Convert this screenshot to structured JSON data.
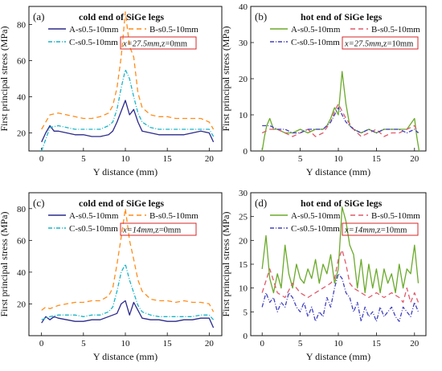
{
  "chart_data": [
    {
      "type": "line",
      "panel_label": "(a)",
      "title": "cold end of SiGe legs",
      "xlabel": "Y distance (mm)",
      "ylabel": "First principal stress (MPa)",
      "xlim": [
        -1.5,
        21.5
      ],
      "ylim": [
        10,
        90
      ],
      "xticks": [
        0,
        5,
        10,
        15,
        20
      ],
      "yticks": [
        20,
        40,
        60,
        80
      ],
      "legend_position": "top",
      "annotation": {
        "x_text": "x=27.5mm",
        "z_text": ",z=0mm"
      },
      "series": [
        {
          "name": "A-s0.5-10mm",
          "color": "#2b2a8c",
          "dash": "",
          "x": [
            0,
            0.5,
            1,
            1.5,
            2,
            3,
            4,
            5,
            6,
            7,
            8,
            8.5,
            9,
            9.5,
            10,
            10.5,
            11,
            11.5,
            12,
            13,
            14,
            15,
            16,
            17,
            18,
            19,
            20,
            20.5
          ],
          "y": [
            15,
            20,
            24,
            21,
            21,
            20,
            19,
            19,
            18,
            18,
            19,
            21,
            26,
            32,
            38,
            30,
            33,
            26,
            21,
            20,
            19,
            19,
            19,
            19,
            20,
            21,
            20,
            15
          ]
        },
        {
          "name": "B-s0.5-10mm",
          "color": "#ff8c1a",
          "dash": "6,4",
          "x": [
            0,
            1,
            2,
            3,
            4,
            5,
            6,
            7,
            8,
            8.5,
            9,
            9.5,
            10,
            10.5,
            11,
            11.5,
            12,
            13,
            14,
            15,
            16,
            17,
            18,
            19,
            20,
            20.5
          ],
          "y": [
            22,
            30,
            31,
            30,
            29,
            28,
            28,
            29,
            31,
            35,
            45,
            62,
            87,
            68,
            62,
            42,
            34,
            30,
            29,
            29,
            28,
            28,
            28,
            28,
            26,
            22
          ]
        },
        {
          "name": "C-s0.5-10mm",
          "color": "#19b4c8",
          "dash": "5,2,1,2",
          "x": [
            0,
            1,
            2,
            3,
            4,
            5,
            6,
            7,
            8,
            8.5,
            9,
            9.5,
            10,
            10.5,
            11,
            11.5,
            12,
            13,
            14,
            15,
            16,
            17,
            18,
            19,
            20,
            20.5
          ],
          "y": [
            10,
            23,
            24,
            23,
            22,
            22,
            22,
            22,
            24,
            26,
            33,
            45,
            55,
            50,
            40,
            31,
            26,
            23,
            22,
            22,
            22,
            22,
            22,
            22,
            22,
            18
          ]
        }
      ]
    },
    {
      "type": "line",
      "panel_label": "(b)",
      "title": "hot end of SiGe legs",
      "xlabel": "Y distance (mm)",
      "ylabel": "First principal stress (MPa)",
      "xlim": [
        -1.5,
        21.5
      ],
      "ylim": [
        0,
        40
      ],
      "xticks": [
        0,
        5,
        10,
        15,
        20
      ],
      "yticks": [
        0,
        10,
        20,
        30,
        40
      ],
      "legend_position": "top",
      "annotation": {
        "x_text": "x=27.5mm",
        "z_text": ",z=10mm"
      },
      "series": [
        {
          "name": "A-s0.5-10mm",
          "color": "#6aaa2a",
          "dash": "",
          "x": [
            0,
            0.3,
            0.6,
            1,
            1.5,
            2,
            3,
            4,
            5,
            6,
            7,
            8,
            8.5,
            9,
            9.5,
            10,
            10.5,
            11,
            11.5,
            12,
            13,
            14,
            15,
            16,
            17,
            18,
            19,
            20,
            20.3,
            20.6
          ],
          "y": [
            0,
            4,
            7,
            9,
            6,
            6,
            5,
            5,
            6,
            5,
            6,
            6,
            7,
            9,
            12,
            10,
            22,
            13,
            7,
            6,
            5,
            6,
            5,
            6,
            6,
            6,
            6,
            9,
            4,
            0
          ]
        },
        {
          "name": "B-s0.5-10mm",
          "color": "#e05a6a",
          "dash": "6,4",
          "x": [
            0,
            1,
            2,
            3,
            4,
            5,
            6,
            7,
            8,
            9,
            9.5,
            10,
            10.5,
            11,
            12,
            13,
            14,
            15,
            16,
            17,
            18,
            19,
            20,
            20.5
          ],
          "y": [
            5,
            6,
            6,
            5,
            4,
            5,
            6,
            4,
            5,
            8,
            11,
            13,
            11,
            9,
            6,
            4,
            5,
            6,
            4,
            5,
            5,
            6,
            7,
            5
          ]
        },
        {
          "name": "C-s0.5-10mm",
          "color": "#4040c0",
          "dash": "5,2,1,2",
          "x": [
            0,
            1,
            2,
            3,
            4,
            5,
            6,
            7,
            8,
            9,
            9.5,
            10,
            10.5,
            11,
            12,
            13,
            14,
            15,
            16,
            17,
            18,
            19,
            20,
            20.5
          ],
          "y": [
            7,
            7,
            6,
            6,
            5,
            5,
            6,
            6,
            6,
            8,
            10,
            12,
            10,
            8,
            6,
            5,
            6,
            5,
            6,
            6,
            6,
            5,
            6,
            5
          ]
        }
      ]
    },
    {
      "type": "line",
      "panel_label": "(c)",
      "title": "cold end of SiGe legs",
      "xlabel": "Y distance (mm)",
      "ylabel": "First principal stress (MPa)",
      "xlim": [
        -1.5,
        21.5
      ],
      "ylim": [
        0,
        90
      ],
      "xticks": [
        0,
        5,
        10,
        15,
        20
      ],
      "yticks": [
        20,
        40,
        60,
        80
      ],
      "legend_position": "top",
      "annotation": {
        "x_text": "x=14mm",
        "z_text": ",z=0mm"
      },
      "series": [
        {
          "name": "A-s0.5-10mm",
          "color": "#2b2a8c",
          "dash": "",
          "x": [
            0,
            0.5,
            1,
            1.5,
            2,
            3,
            4,
            5,
            6,
            7,
            8,
            9,
            9.5,
            10,
            10.5,
            11,
            11.5,
            12,
            13,
            14,
            15,
            16,
            17,
            18,
            19,
            20,
            20.5
          ],
          "y": [
            8,
            12,
            10,
            12,
            11,
            10,
            9,
            9,
            10,
            10,
            12,
            14,
            20,
            22,
            13,
            21,
            16,
            11,
            10,
            10,
            9,
            9,
            10,
            10,
            11,
            11,
            5
          ]
        },
        {
          "name": "B-s0.5-10mm",
          "color": "#ff8c1a",
          "dash": "6,4",
          "x": [
            0,
            0.5,
            1,
            2,
            3,
            4,
            5,
            6,
            7,
            8,
            8.5,
            9,
            9.5,
            10,
            10.5,
            11,
            11.5,
            12,
            13,
            14,
            15,
            16,
            17,
            18,
            19,
            20,
            20.5
          ],
          "y": [
            16,
            18,
            17,
            19,
            20,
            21,
            21,
            22,
            22,
            25,
            30,
            45,
            62,
            80,
            60,
            48,
            35,
            28,
            23,
            22,
            22,
            21,
            22,
            21,
            21,
            20,
            15
          ]
        },
        {
          "name": "C-s0.5-10mm",
          "color": "#19b4c8",
          "dash": "5,2,1,2",
          "x": [
            0,
            1,
            2,
            3,
            4,
            5,
            6,
            7,
            8,
            8.5,
            9,
            9.5,
            10,
            10.5,
            11,
            11.5,
            12,
            13,
            14,
            15,
            16,
            17,
            18,
            19,
            20,
            20.5
          ],
          "y": [
            10,
            12,
            13,
            13,
            13,
            12,
            13,
            13,
            15,
            18,
            28,
            40,
            45,
            35,
            27,
            19,
            15,
            13,
            12,
            12,
            12,
            12,
            12,
            13,
            13,
            10
          ]
        }
      ]
    },
    {
      "type": "line",
      "panel_label": "(d)",
      "title": "hot end of SiGe legs",
      "xlabel": "Y distance (mm)",
      "ylabel": "First principal stress (MPa)",
      "xlim": [
        -1.5,
        21.5
      ],
      "ylim": [
        0,
        30
      ],
      "xticks": [
        0,
        5,
        10,
        15,
        20
      ],
      "yticks": [
        0,
        5,
        10,
        15,
        20,
        25,
        30
      ],
      "legend_position": "top",
      "annotation": {
        "x_text": "x=14mm",
        "z_text": ",z=10mm"
      },
      "series": [
        {
          "name": "A-s0.5-10mm",
          "color": "#6aaa2a",
          "dash": "",
          "x": [
            0,
            0.5,
            1,
            1.5,
            2,
            2.5,
            3,
            3.5,
            4,
            4.5,
            5,
            5.5,
            6,
            6.5,
            7,
            7.5,
            8,
            8.5,
            9,
            9.5,
            10,
            10.5,
            11,
            11.5,
            12,
            12.5,
            13,
            13.5,
            14,
            14.5,
            15,
            15.5,
            16,
            16.5,
            17,
            17.5,
            18,
            18.5,
            19,
            19.5,
            20,
            20.5
          ],
          "y": [
            14,
            21,
            12,
            9,
            13,
            10,
            19,
            13,
            10,
            15,
            12,
            11,
            14,
            12,
            16,
            11,
            15,
            13,
            17,
            11,
            14,
            27,
            24,
            19,
            17,
            10,
            16,
            9,
            15,
            10,
            14,
            9,
            14,
            11,
            13,
            9,
            15,
            10,
            14,
            13,
            19,
            11
          ]
        },
        {
          "name": "B-s0.5-10mm",
          "color": "#e05a6a",
          "dash": "6,4",
          "x": [
            0,
            1,
            2,
            3,
            4,
            5,
            6,
            7,
            8,
            9,
            9.5,
            10,
            10.5,
            11,
            11.5,
            12,
            13,
            14,
            15,
            16,
            17,
            18,
            18.5,
            19,
            19.5,
            20,
            20.5
          ],
          "y": [
            9,
            14,
            9,
            8,
            11,
            9,
            8,
            9,
            10,
            11,
            12,
            16,
            18,
            15,
            11,
            10,
            9,
            8,
            9,
            8,
            9,
            8,
            7,
            10,
            7,
            9,
            7
          ]
        },
        {
          "name": "C-s0.5-10mm",
          "color": "#4040c0",
          "dash": "5,2,1,2",
          "x": [
            0,
            0.5,
            1,
            1.5,
            2,
            2.5,
            3,
            3.5,
            4,
            4.5,
            5,
            5.5,
            6,
            6.5,
            7,
            7.5,
            8,
            8.5,
            9,
            9.5,
            10,
            10.5,
            11,
            11.5,
            12,
            12.5,
            13,
            13.5,
            14,
            14.5,
            15,
            15.5,
            16,
            16.5,
            17,
            17.5,
            18,
            18.5,
            19,
            19.5,
            20,
            20.5
          ],
          "y": [
            6,
            9,
            7,
            8,
            5,
            7,
            6,
            9,
            8,
            6,
            5,
            7,
            4,
            6,
            3,
            5,
            4,
            8,
            6,
            10,
            13,
            12,
            9,
            8,
            5,
            7,
            3,
            6,
            4,
            5,
            3,
            6,
            4,
            5,
            6,
            4,
            3,
            6,
            5,
            4,
            7,
            5
          ]
        }
      ]
    }
  ]
}
